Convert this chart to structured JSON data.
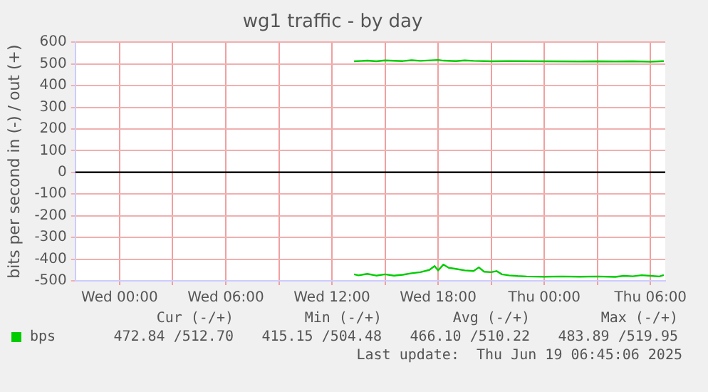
{
  "chart_data": {
    "type": "line",
    "title": "wg1 traffic - by day",
    "ylabel": "bits per second in (-) / out (+)",
    "xlim": [
      "2025-06-17T21:30",
      "2025-06-19T06:50"
    ],
    "xticks": [
      {
        "value": "2025-06-18T00:00",
        "label": "Wed 00:00"
      },
      {
        "value": "2025-06-18T03:00",
        "label": null
      },
      {
        "value": "2025-06-18T06:00",
        "label": "Wed 06:00"
      },
      {
        "value": "2025-06-18T09:00",
        "label": null
      },
      {
        "value": "2025-06-18T12:00",
        "label": "Wed 12:00"
      },
      {
        "value": "2025-06-18T15:00",
        "label": null
      },
      {
        "value": "2025-06-18T18:00",
        "label": "Wed 18:00"
      },
      {
        "value": "2025-06-18T21:00",
        "label": null
      },
      {
        "value": "2025-06-19T00:00",
        "label": "Thu 00:00"
      },
      {
        "value": "2025-06-19T03:00",
        "label": null
      },
      {
        "value": "2025-06-19T06:00",
        "label": "Thu 06:00"
      }
    ],
    "ylim": [
      -500,
      600
    ],
    "yticks": [
      -500,
      -400,
      -300,
      -200,
      -100,
      0,
      100,
      200,
      300,
      400,
      500,
      600
    ],
    "grid": true,
    "legend": "bottom",
    "marker": "none",
    "line_style": "solid",
    "ref_lines": [
      {
        "axis": "y",
        "value": 0,
        "color": "#000000"
      }
    ],
    "series": [
      {
        "name": "bps",
        "color": "#00cc00",
        "x": [
          "2025-06-18T13:15",
          "2025-06-18T14:00",
          "2025-06-18T14:30",
          "2025-06-18T15:00",
          "2025-06-18T16:00",
          "2025-06-18T16:30",
          "2025-06-18T17:00",
          "2025-06-18T18:00",
          "2025-06-18T18:18",
          "2025-06-18T19:00",
          "2025-06-18T19:30",
          "2025-06-18T20:00",
          "2025-06-18T21:00",
          "2025-06-18T22:00",
          "2025-06-19T00:00",
          "2025-06-19T02:00",
          "2025-06-19T03:00",
          "2025-06-19T04:00",
          "2025-06-19T05:00",
          "2025-06-19T06:00",
          "2025-06-19T06:45"
        ],
        "values": [
          512,
          515,
          512,
          516,
          513,
          517,
          514,
          518,
          515,
          513,
          516,
          514,
          512,
          513,
          512,
          511,
          512,
          511,
          512,
          510,
          513
        ]
      },
      {
        "color": "#00cc00",
        "x": [
          "2025-06-18T13:15",
          "2025-06-18T13:30",
          "2025-06-18T14:00",
          "2025-06-18T14:30",
          "2025-06-18T15:00",
          "2025-06-18T15:30",
          "2025-06-18T16:00",
          "2025-06-18T16:30",
          "2025-06-18T17:00",
          "2025-06-18T17:30",
          "2025-06-18T17:48",
          "2025-06-18T18:00",
          "2025-06-18T18:18",
          "2025-06-18T18:36",
          "2025-06-18T19:00",
          "2025-06-18T19:30",
          "2025-06-18T20:00",
          "2025-06-18T20:18",
          "2025-06-18T20:36",
          "2025-06-18T21:00",
          "2025-06-18T21:18",
          "2025-06-18T21:36",
          "2025-06-18T22:00",
          "2025-06-18T22:30",
          "2025-06-18T23:00",
          "2025-06-19T00:00",
          "2025-06-19T01:00",
          "2025-06-19T02:00",
          "2025-06-19T03:00",
          "2025-06-19T04:00",
          "2025-06-19T04:30",
          "2025-06-19T05:00",
          "2025-06-19T05:30",
          "2025-06-19T06:00",
          "2025-06-19T06:30",
          "2025-06-19T06:45"
        ],
        "values": [
          -470,
          -475,
          -468,
          -476,
          -470,
          -476,
          -472,
          -465,
          -460,
          -450,
          -432,
          -452,
          -425,
          -440,
          -445,
          -452,
          -455,
          -438,
          -458,
          -460,
          -455,
          -470,
          -475,
          -478,
          -480,
          -481,
          -480,
          -481,
          -480,
          -482,
          -477,
          -479,
          -474,
          -477,
          -480,
          -473
        ]
      }
    ],
    "annotations": [
      "Cur (-/+)",
      "Min (-/+)",
      "Avg (-/+)",
      "Max (-/+)",
      "472.84 /512.70",
      "415.15 /504.48",
      "466.10 /510.22",
      "483.89 /519.95",
      "Last update:  Thu Jun 19 06:45:06 2025"
    ]
  }
}
